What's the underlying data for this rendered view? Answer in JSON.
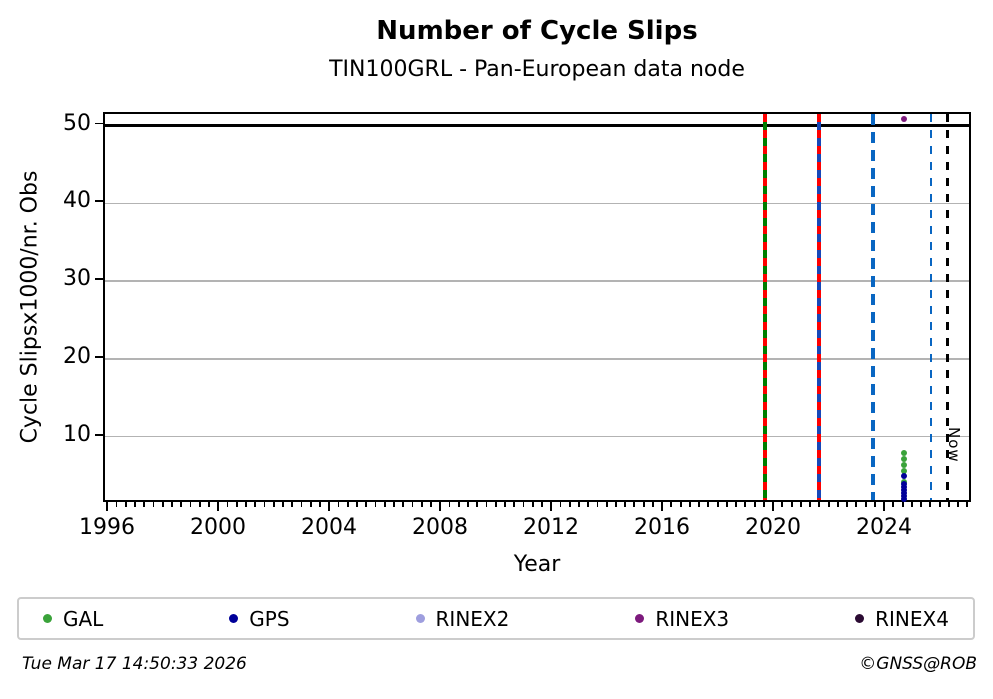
{
  "title": "Number of Cycle Slips",
  "subtitle": "TIN100GRL - Pan-European data node",
  "footer": {
    "timestamp": "Tue Mar 17 14:50:33 2026",
    "copyright": "©GNSS@ROB"
  },
  "legend": [
    {
      "label": "GAL",
      "color": "#3aa33a"
    },
    {
      "label": "GPS",
      "color": "#000099"
    },
    {
      "label": "RINEX2",
      "color": "#9e9ede"
    },
    {
      "label": "RINEX3",
      "color": "#7d1a7d"
    },
    {
      "label": "RINEX4",
      "color": "#2b0b33"
    }
  ],
  "chart_data": {
    "type": "scatter",
    "title": "Number of Cycle Slips",
    "subtitle": "TIN100GRL - Pan-European data node",
    "xlabel": "Year",
    "ylabel": "Cycle Slipsx1000/nr. Obs",
    "xlim": [
      1995.85,
      2027.2
    ],
    "ylim": [
      1.4,
      51.5
    ],
    "xticks": [
      1996,
      2000,
      2004,
      2008,
      2012,
      2016,
      2020,
      2024
    ],
    "xtick_labels": [
      "1996",
      "2000",
      "2004",
      "2008",
      "2012",
      "2016",
      "2020",
      "2024"
    ],
    "x_minor_step_years": 0.3333,
    "yticks": [
      50,
      40,
      30,
      20,
      10
    ],
    "ytick_labels": [
      "50",
      "40",
      "30",
      "20",
      "10"
    ],
    "grid": "horizontal-gray",
    "grid_color": "#b3b3b3",
    "hline": {
      "y": 50,
      "color": "#000000"
    },
    "series": [
      {
        "name": "GAL",
        "color": "#3aa33a",
        "points": [
          [
            2024.65,
            7.9
          ],
          [
            2024.65,
            7.15
          ],
          [
            2024.65,
            6.4
          ],
          [
            2024.65,
            5.65
          ],
          [
            2024.65,
            4.2
          ]
        ]
      },
      {
        "name": "GPS",
        "color": "#000099",
        "points": [
          [
            2024.65,
            5.0
          ],
          [
            2024.65,
            3.9
          ],
          [
            2024.65,
            3.5
          ],
          [
            2024.65,
            3.1
          ],
          [
            2024.65,
            2.75
          ],
          [
            2024.65,
            2.4
          ],
          [
            2024.65,
            2.05
          ]
        ]
      },
      {
        "name": "RINEX2",
        "color": "#9e9ede",
        "points": []
      },
      {
        "name": "RINEX3",
        "color": "#7d1a7d",
        "points": [
          [
            2024.65,
            50.8
          ]
        ]
      },
      {
        "name": "RINEX4",
        "color": "#2b0b33",
        "points": []
      }
    ],
    "vlines": [
      {
        "year": 2019.64,
        "style": "solid-red-dash",
        "color": "#007d00"
      },
      {
        "year": 2021.59,
        "style": "solid-red-dash",
        "color": "#1747b8"
      },
      {
        "year": 2023.53,
        "style": "dashed-thick",
        "color": "#0966c2"
      },
      {
        "year": 2025.62,
        "style": "dashed",
        "color": "#0966c2"
      },
      {
        "year": 2026.21,
        "style": "dashed",
        "color": "#000000",
        "label": "Now"
      }
    ],
    "red_dash_color": "#ff0000",
    "now_annotation": {
      "text": "Now",
      "year": 2026.35,
      "y": 11.3
    },
    "legend_position": "bottom",
    "legend_entries": [
      "GAL",
      "GPS",
      "RINEX2",
      "RINEX3",
      "RINEX4"
    ]
  }
}
